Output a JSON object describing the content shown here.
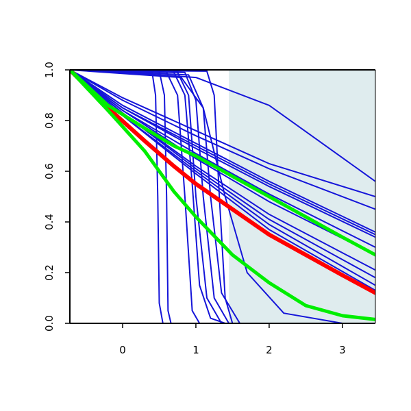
{
  "chart_data": {
    "type": "line",
    "title": "",
    "xlabel": "",
    "ylabel": "",
    "xlim": [
      -0.72,
      3.45
    ],
    "ylim": [
      0.0,
      1.0
    ],
    "x_ticks": [
      0,
      1,
      2,
      3
    ],
    "y_ticks": [
      0.0,
      0.2,
      0.4,
      0.6,
      0.8,
      1.0
    ],
    "x_tick_labels": [
      "0",
      "1",
      "2",
      "3"
    ],
    "y_tick_labels": [
      "0.0",
      "0.2",
      "0.4",
      "0.6",
      "0.8",
      "1.0"
    ],
    "grid": false,
    "legend": "none",
    "shaded_region": {
      "x_start": 1.45,
      "x_end": 3.45,
      "color": "#dfecee"
    },
    "colors": {
      "blue": "#1515d9",
      "red": "#ff0000",
      "green": "#00ee00"
    },
    "series": [
      {
        "color": "blue",
        "width": 2,
        "points": [
          [
            -0.72,
            1.0
          ],
          [
            0.0,
            0.89
          ],
          [
            1.0,
            0.76
          ],
          [
            2.0,
            0.63
          ],
          [
            3.45,
            0.5
          ]
        ]
      },
      {
        "color": "blue",
        "width": 2,
        "points": [
          [
            -0.72,
            1.0
          ],
          [
            0.0,
            0.88
          ],
          [
            1.0,
            0.74
          ],
          [
            2.0,
            0.61
          ],
          [
            3.45,
            0.45
          ]
        ]
      },
      {
        "color": "blue",
        "width": 2,
        "points": [
          [
            -0.72,
            1.0
          ],
          [
            0.0,
            0.86
          ],
          [
            1.0,
            0.71
          ],
          [
            2.0,
            0.56
          ],
          [
            3.45,
            0.36
          ]
        ]
      },
      {
        "color": "blue",
        "width": 2,
        "points": [
          [
            -0.72,
            1.0
          ],
          [
            0.0,
            0.85
          ],
          [
            1.0,
            0.7
          ],
          [
            2.0,
            0.55
          ],
          [
            3.45,
            0.35
          ]
        ]
      },
      {
        "color": "blue",
        "width": 2,
        "points": [
          [
            -0.72,
            1.0
          ],
          [
            0.0,
            0.85
          ],
          [
            1.0,
            0.69
          ],
          [
            2.0,
            0.54
          ],
          [
            3.45,
            0.34
          ]
        ]
      },
      {
        "color": "blue",
        "width": 2,
        "points": [
          [
            -0.72,
            1.0
          ],
          [
            0.0,
            0.84
          ],
          [
            1.0,
            0.67
          ],
          [
            2.0,
            0.51
          ],
          [
            3.45,
            0.3
          ]
        ]
      },
      {
        "color": "blue",
        "width": 2,
        "points": [
          [
            -0.72,
            1.0
          ],
          [
            0.0,
            0.84
          ],
          [
            1.0,
            0.65
          ],
          [
            2.0,
            0.48
          ],
          [
            3.45,
            0.27
          ]
        ]
      },
      {
        "color": "blue",
        "width": 2,
        "points": [
          [
            -0.72,
            1.0
          ],
          [
            0.0,
            0.83
          ],
          [
            1.0,
            0.62
          ],
          [
            2.0,
            0.43
          ],
          [
            3.45,
            0.21
          ]
        ]
      },
      {
        "color": "blue",
        "width": 2,
        "points": [
          [
            -0.72,
            1.0
          ],
          [
            0.0,
            0.83
          ],
          [
            1.0,
            0.61
          ],
          [
            2.0,
            0.41
          ],
          [
            3.45,
            0.18
          ]
        ]
      },
      {
        "color": "blue",
        "width": 2,
        "points": [
          [
            -0.72,
            1.0
          ],
          [
            0.0,
            0.82
          ],
          [
            1.0,
            0.6
          ],
          [
            2.0,
            0.39
          ],
          [
            3.45,
            0.15
          ]
        ]
      },
      {
        "color": "blue",
        "width": 2,
        "points": [
          [
            -0.72,
            1.0
          ],
          [
            0.0,
            0.82
          ],
          [
            1.0,
            0.59
          ],
          [
            2.0,
            0.37
          ],
          [
            3.45,
            0.13
          ]
        ]
      },
      {
        "color": "blue",
        "width": 2,
        "points": [
          [
            -0.72,
            1.0
          ],
          [
            0.0,
            0.99
          ],
          [
            1.0,
            0.97
          ],
          [
            2.0,
            0.86
          ],
          [
            3.45,
            0.56
          ]
        ]
      },
      {
        "color": "blue",
        "width": 2,
        "points": [
          [
            -0.72,
            1.0
          ],
          [
            0.4,
            0.995
          ],
          [
            0.45,
            0.9
          ],
          [
            0.48,
            0.5
          ],
          [
            0.5,
            0.08
          ],
          [
            0.55,
            0.0
          ]
        ]
      },
      {
        "color": "blue",
        "width": 2,
        "points": [
          [
            -0.72,
            1.0
          ],
          [
            0.5,
            0.995
          ],
          [
            0.57,
            0.9
          ],
          [
            0.6,
            0.5
          ],
          [
            0.62,
            0.05
          ],
          [
            0.66,
            0.0
          ]
        ]
      },
      {
        "color": "blue",
        "width": 2,
        "points": [
          [
            -0.72,
            1.0
          ],
          [
            0.6,
            0.99
          ],
          [
            0.75,
            0.9
          ],
          [
            0.85,
            0.5
          ],
          [
            0.95,
            0.05
          ],
          [
            1.05,
            0.0
          ]
        ]
      },
      {
        "color": "blue",
        "width": 2,
        "points": [
          [
            -0.72,
            1.0
          ],
          [
            0.7,
            0.99
          ],
          [
            0.85,
            0.9
          ],
          [
            0.95,
            0.55
          ],
          [
            1.05,
            0.15
          ],
          [
            1.2,
            0.02
          ],
          [
            1.4,
            0.0
          ]
        ]
      },
      {
        "color": "blue",
        "width": 2,
        "points": [
          [
            -0.72,
            1.0
          ],
          [
            0.75,
            0.99
          ],
          [
            0.9,
            0.9
          ],
          [
            1.0,
            0.5
          ],
          [
            1.15,
            0.1
          ],
          [
            1.35,
            0.0
          ]
        ]
      },
      {
        "color": "blue",
        "width": 2,
        "points": [
          [
            -0.72,
            1.0
          ],
          [
            0.85,
            0.99
          ],
          [
            1.0,
            0.88
          ],
          [
            1.1,
            0.5
          ],
          [
            1.25,
            0.1
          ],
          [
            1.45,
            0.0
          ]
        ]
      },
      {
        "color": "blue",
        "width": 2,
        "points": [
          [
            -0.72,
            1.0
          ],
          [
            0.9,
            0.98
          ],
          [
            1.1,
            0.85
          ],
          [
            1.2,
            0.5
          ],
          [
            1.35,
            0.12
          ],
          [
            1.6,
            0.0
          ]
        ]
      },
      {
        "color": "blue",
        "width": 2,
        "points": [
          [
            -0.72,
            1.0
          ],
          [
            1.15,
            0.995
          ],
          [
            1.25,
            0.9
          ],
          [
            1.32,
            0.5
          ],
          [
            1.4,
            0.1
          ],
          [
            1.5,
            0.0
          ]
        ]
      },
      {
        "color": "blue",
        "width": 2,
        "points": [
          [
            -0.72,
            1.0
          ],
          [
            0.8,
            0.97
          ],
          [
            1.1,
            0.85
          ],
          [
            1.4,
            0.5
          ],
          [
            1.7,
            0.2
          ],
          [
            2.2,
            0.04
          ],
          [
            3.0,
            0.0
          ]
        ]
      },
      {
        "color": "red",
        "width": 6,
        "points": [
          [
            -0.72,
            1.0
          ],
          [
            -0.2,
            0.85
          ],
          [
            0.3,
            0.72
          ],
          [
            0.7,
            0.62
          ],
          [
            1.0,
            0.55
          ],
          [
            1.5,
            0.45
          ],
          [
            2.0,
            0.35
          ],
          [
            2.5,
            0.27
          ],
          [
            3.0,
            0.19
          ],
          [
            3.45,
            0.12
          ]
        ]
      },
      {
        "color": "green",
        "width": 5,
        "points": [
          [
            -0.72,
            1.0
          ],
          [
            -0.2,
            0.86
          ],
          [
            0.3,
            0.77
          ],
          [
            0.7,
            0.7
          ],
          [
            1.0,
            0.66
          ],
          [
            1.5,
            0.58
          ],
          [
            2.0,
            0.5
          ],
          [
            2.5,
            0.42
          ],
          [
            3.0,
            0.34
          ],
          [
            3.45,
            0.27
          ]
        ]
      },
      {
        "color": "green",
        "width": 5,
        "points": [
          [
            -0.72,
            1.0
          ],
          [
            -0.2,
            0.84
          ],
          [
            0.3,
            0.68
          ],
          [
            0.7,
            0.52
          ],
          [
            1.0,
            0.42
          ],
          [
            1.5,
            0.27
          ],
          [
            2.0,
            0.16
          ],
          [
            2.5,
            0.07
          ],
          [
            3.0,
            0.03
          ],
          [
            3.45,
            0.015
          ]
        ]
      }
    ]
  }
}
